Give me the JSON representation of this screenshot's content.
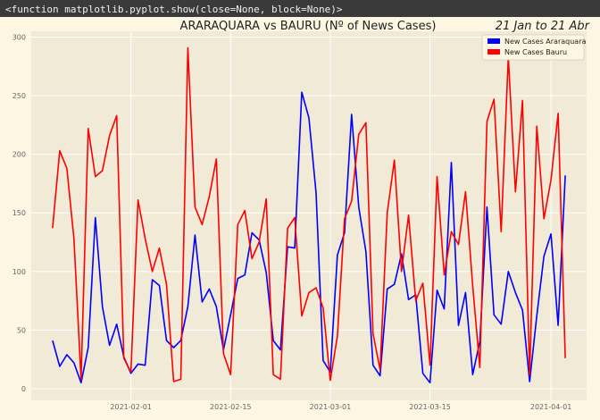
{
  "console_line": "<function matplotlib.pyplot.show(close=None, block=None)>",
  "colors": {
    "background": "#fdf6e3",
    "plot_area": "#f0ead6",
    "grid": "#ffffff",
    "araraquara": "#0000ff",
    "bauru": "#ff0000"
  },
  "chart_data": {
    "type": "line",
    "title": "ARARAQUARA vs BAURU (Nº of News Cases)",
    "date_caption": "21 Jan to 21 Abr",
    "xlabel": "",
    "ylabel": "",
    "x_range": [
      "2021-01-18",
      "2021-04-06"
    ],
    "ylim": [
      -10,
      305
    ],
    "yticks": [
      0,
      50,
      100,
      150,
      200,
      250,
      300
    ],
    "xticks": [
      "2021-02-01",
      "2021-02-15",
      "2021-03-01",
      "2021-03-15",
      "2021-04-01"
    ],
    "grid": true,
    "legend_position": "top-right",
    "start_date": "2021-01-21",
    "series": [
      {
        "name": "New Cases Araraquara",
        "color": "#0000ff",
        "values": [
          41,
          19,
          29,
          22,
          5,
          35,
          146,
          70,
          37,
          55,
          27,
          13,
          21,
          20,
          93,
          88,
          41,
          35,
          41,
          70,
          131,
          74,
          85,
          70,
          33,
          63,
          94,
          97,
          133,
          127,
          99,
          41,
          33,
          121,
          120,
          253,
          231,
          167,
          24,
          14,
          114,
          133,
          234,
          155,
          117,
          20,
          11,
          85,
          89,
          115,
          76,
          80,
          13,
          5,
          84,
          68,
          193,
          54,
          82,
          12,
          40,
          155,
          63,
          55,
          100,
          82,
          67,
          6,
          62,
          113,
          132,
          54,
          182
        ],
        "days": [
          0,
          1,
          2,
          3,
          4,
          5,
          6,
          7,
          8,
          9,
          10,
          11,
          12,
          13,
          14,
          15,
          16,
          17,
          18,
          19,
          20,
          21,
          22,
          23,
          24,
          25,
          26,
          27,
          28,
          29,
          30,
          31,
          32,
          33,
          34,
          35,
          36,
          37,
          38,
          39,
          40,
          41,
          42,
          43,
          44,
          45,
          46,
          47,
          48,
          49,
          50,
          51,
          52,
          53,
          54,
          55,
          56,
          57,
          58,
          59,
          60,
          61,
          62,
          63,
          64,
          65,
          66,
          67,
          68,
          69,
          70,
          71,
          72
        ]
      },
      {
        "name": "New Cases Bauru",
        "color": "#ff0000",
        "values": [
          137,
          203,
          188,
          128,
          8,
          222,
          181,
          186,
          216,
          233,
          26,
          14,
          161,
          128,
          100,
          120,
          89,
          6,
          8,
          291,
          155,
          140,
          164,
          196,
          30,
          12,
          140,
          152,
          111,
          125,
          162,
          12,
          8,
          137,
          146,
          62,
          82,
          86,
          69,
          7,
          45,
          145,
          160,
          217,
          227,
          47,
          16,
          150,
          195,
          100,
          148,
          75,
          90,
          20,
          181,
          97,
          134,
          123,
          168,
          88,
          18,
          228,
          247,
          134,
          283,
          168,
          246,
          12,
          224,
          145,
          178,
          235,
          26
        ],
        "days": [
          0,
          1,
          2,
          3,
          4,
          5,
          6,
          7,
          8,
          9,
          10,
          11,
          12,
          13,
          14,
          15,
          16,
          17,
          18,
          19,
          20,
          21,
          22,
          23,
          24,
          25,
          26,
          27,
          28,
          29,
          30,
          31,
          32,
          33,
          34,
          35,
          36,
          37,
          38,
          39,
          40,
          41,
          42,
          43,
          44,
          45,
          46,
          47,
          48,
          49,
          50,
          51,
          52,
          53,
          54,
          55,
          56,
          57,
          58,
          59,
          60,
          61,
          62,
          63,
          64,
          65,
          66,
          67,
          68,
          69,
          70,
          71,
          72
        ]
      }
    ]
  }
}
